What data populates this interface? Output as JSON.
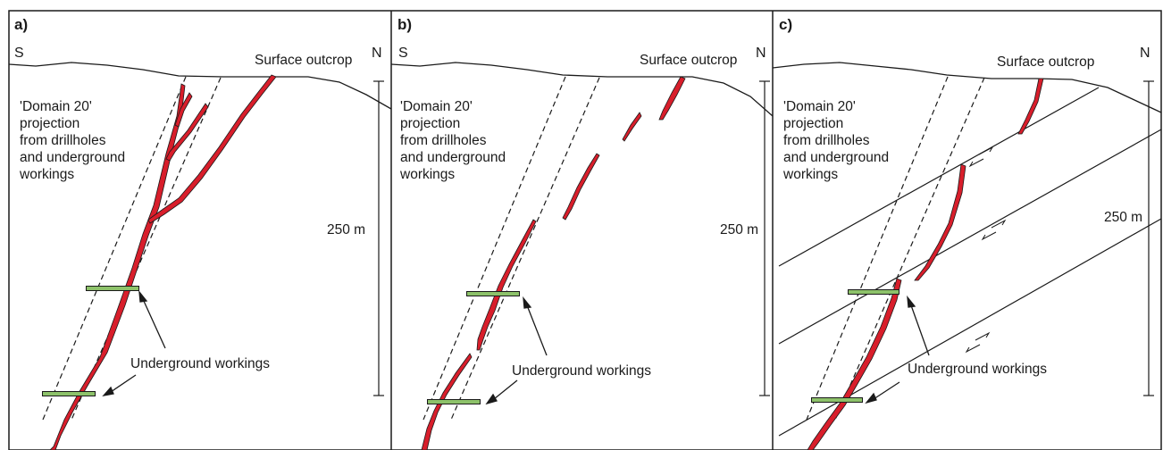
{
  "figure": {
    "panels": [
      {
        "letter": "a)",
        "south": "S",
        "north": "N",
        "outcrop": "Surface outcrop",
        "projection_lines": [
          "'Domain 20'",
          "projection",
          "from drillholes",
          "and underground",
          "workings"
        ],
        "scale": "250 m",
        "workings": "Underground workings"
      },
      {
        "letter": "b)",
        "south": "S",
        "north": "N",
        "outcrop": "Surface outcrop",
        "projection_lines": [
          "'Domain 20'",
          "projection",
          "from drillholes",
          "and underground",
          "workings"
        ],
        "scale": "250 m",
        "workings": "Underground workings"
      },
      {
        "letter": "c)",
        "south": "S",
        "north": "N",
        "outcrop": "Surface outcrop",
        "projection_lines": [
          "'Domain 20'",
          "projection",
          "from drillholes",
          "and underground",
          "workings"
        ],
        "scale": "250 m",
        "workings": "Underground workings"
      }
    ],
    "colors": {
      "vein": "#d81e2b",
      "workings": "#8dc26a",
      "line": "#1a1a1a"
    }
  }
}
